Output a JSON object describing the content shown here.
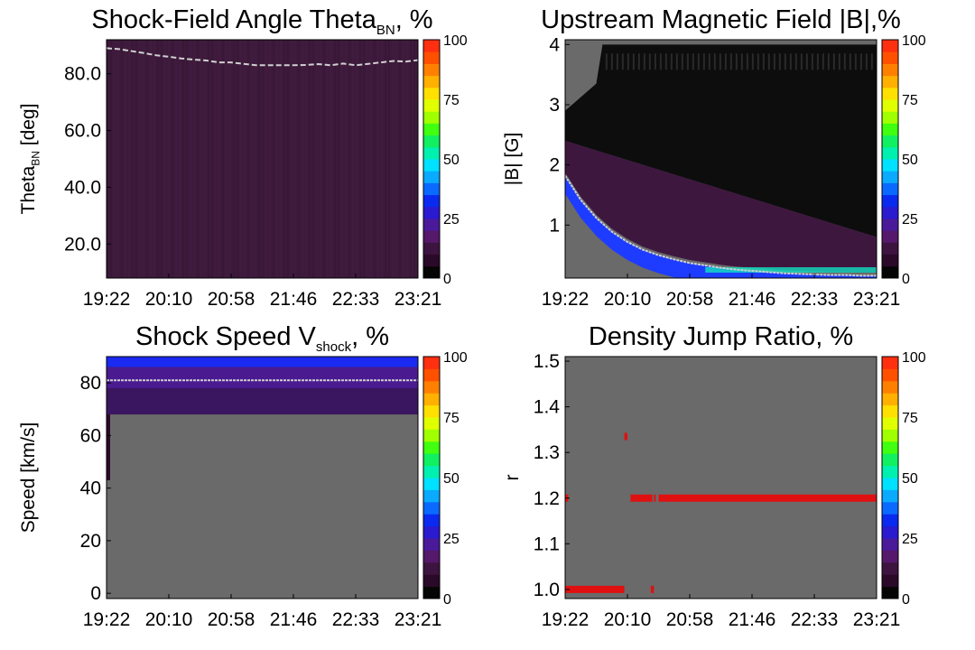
{
  "chart_data": [
    {
      "type": "heatmap",
      "title": "Shock-Field Angle Theta",
      "title_sub": "BN",
      "title_tail": ", %",
      "ylabel": "Theta",
      "ylabel_sub": "BN",
      "ylabel_tail": " [deg]",
      "xlim": [
        "19:22",
        "23:21"
      ],
      "ylim": [
        8,
        92
      ],
      "x_ticks": [
        "19:22",
        "20:10",
        "20:58",
        "21:46",
        "22:33",
        "23:21"
      ],
      "y_ticks": [
        {
          "v": 20,
          "t": "20.0"
        },
        {
          "v": 40,
          "t": "40.0"
        },
        {
          "v": 60,
          "t": "60.0"
        },
        {
          "v": 80,
          "t": "80.0"
        }
      ],
      "colorbar": {
        "range": [
          0,
          100
        ],
        "ticks": [
          "0",
          "25",
          "50",
          "75",
          "100"
        ]
      },
      "background": "#3d1a3b",
      "trace_color": "#d0d0d0",
      "trace": [
        [
          0.0,
          89.0
        ],
        [
          0.04,
          88.7
        ],
        [
          0.08,
          88.0
        ],
        [
          0.12,
          87.3
        ],
        [
          0.16,
          86.5
        ],
        [
          0.2,
          86.0
        ],
        [
          0.24,
          85.4
        ],
        [
          0.28,
          85.0
        ],
        [
          0.32,
          84.7
        ],
        [
          0.36,
          84.0
        ],
        [
          0.4,
          84.0
        ],
        [
          0.44,
          83.5
        ],
        [
          0.48,
          83.0
        ],
        [
          0.52,
          83.0
        ],
        [
          0.56,
          83.0
        ],
        [
          0.6,
          83.0
        ],
        [
          0.64,
          83.1
        ],
        [
          0.68,
          83.4
        ],
        [
          0.72,
          83.0
        ],
        [
          0.76,
          83.6
        ],
        [
          0.8,
          83.0
        ],
        [
          0.84,
          83.5
        ],
        [
          0.88,
          84.0
        ],
        [
          0.92,
          84.5
        ],
        [
          0.96,
          84.3
        ],
        [
          1.0,
          84.8
        ]
      ]
    },
    {
      "type": "heatmap",
      "title": "Upstream Magnetic Field |B|,%",
      "ylabel": "|B| [G]",
      "xlim": [
        "19:22",
        "23:21"
      ],
      "ylim": [
        0.12,
        4.08
      ],
      "x_ticks": [
        "19:22",
        "20:10",
        "20:58",
        "21:46",
        "22:33",
        "23:21"
      ],
      "y_ticks": [
        {
          "v": 1,
          "t": "1"
        },
        {
          "v": 2,
          "t": "2"
        },
        {
          "v": 3,
          "t": "3"
        },
        {
          "v": 4,
          "t": "4"
        }
      ],
      "colorbar": {
        "range": [
          0,
          100
        ],
        "ticks": [
          "0",
          "25",
          "50",
          "75",
          "100"
        ]
      },
      "background": "#6a6a6a",
      "trace_color": "#d0d0d0",
      "trace": [
        [
          0.0,
          1.82
        ],
        [
          0.05,
          1.42
        ],
        [
          0.1,
          1.12
        ],
        [
          0.15,
          0.89
        ],
        [
          0.2,
          0.72
        ],
        [
          0.25,
          0.59
        ],
        [
          0.3,
          0.5
        ],
        [
          0.35,
          0.43
        ],
        [
          0.4,
          0.37
        ],
        [
          0.45,
          0.33
        ],
        [
          0.5,
          0.29
        ],
        [
          0.55,
          0.26
        ],
        [
          0.6,
          0.24
        ],
        [
          0.65,
          0.22
        ],
        [
          0.7,
          0.2
        ],
        [
          0.75,
          0.19
        ],
        [
          0.8,
          0.18
        ],
        [
          0.85,
          0.17
        ],
        [
          0.9,
          0.17
        ],
        [
          0.95,
          0.16
        ],
        [
          1.0,
          0.16
        ]
      ]
    },
    {
      "type": "heatmap",
      "title": "Shock Speed V",
      "title_sub": "shock",
      "title_tail": ", %",
      "ylabel": "Speed [km/s]",
      "xlim": [
        "19:22",
        "23:21"
      ],
      "ylim": [
        -2,
        90
      ],
      "x_ticks": [
        "19:22",
        "20:10",
        "20:58",
        "21:46",
        "22:33",
        "23:21"
      ],
      "y_ticks": [
        {
          "v": 0,
          "t": "0"
        },
        {
          "v": 20,
          "t": "20"
        },
        {
          "v": 40,
          "t": "40"
        },
        {
          "v": 60,
          "t": "60"
        },
        {
          "v": 80,
          "t": "80"
        }
      ],
      "colorbar": {
        "range": [
          0,
          100
        ],
        "ticks": [
          "0",
          "25",
          "50",
          "75",
          "100"
        ]
      },
      "background": "#6a6a6a",
      "trace_color": "#d0d0d0",
      "trace": [
        [
          0.0,
          81.0
        ],
        [
          1.0,
          81.0
        ]
      ]
    },
    {
      "type": "heatmap",
      "title": "Density Jump Ratio, %",
      "ylabel": "r",
      "xlim": [
        "19:22",
        "23:21"
      ],
      "ylim": [
        0.98,
        1.51
      ],
      "x_ticks": [
        "19:22",
        "20:10",
        "20:58",
        "21:46",
        "22:33",
        "23:21"
      ],
      "y_ticks": [
        {
          "v": 1.0,
          "t": "1.0"
        },
        {
          "v": 1.1,
          "t": "1.1"
        },
        {
          "v": 1.2,
          "t": "1.2"
        },
        {
          "v": 1.3,
          "t": "1.3"
        },
        {
          "v": 1.4,
          "t": "1.4"
        },
        {
          "v": 1.5,
          "t": "1.5"
        }
      ],
      "colorbar": {
        "range": [
          0,
          100
        ],
        "ticks": [
          "0",
          "25",
          "50",
          "75",
          "100"
        ]
      },
      "background": "#6a6a6a",
      "trace_color": "#e01010",
      "trace": []
    }
  ]
}
